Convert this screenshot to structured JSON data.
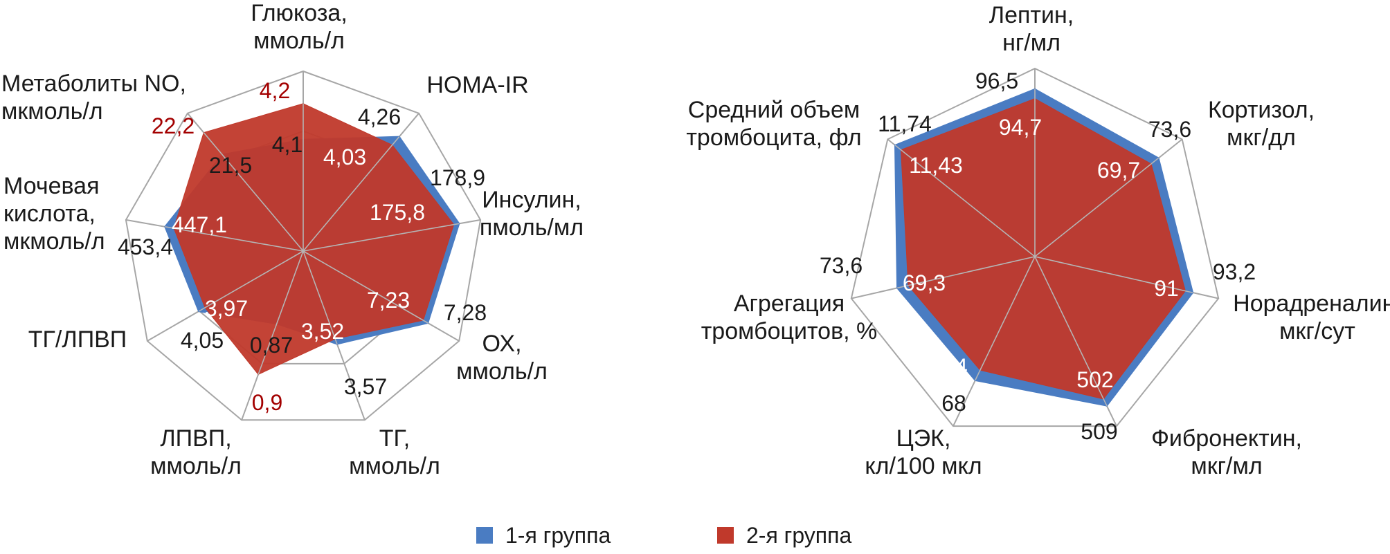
{
  "colors": {
    "group1": "#4a7cc2",
    "group2": "#c0392b",
    "grid": "#a6a6a6",
    "highlight_text": "#a30000"
  },
  "legend": [
    {
      "label": "1-я группа",
      "color": "#4a7cc2"
    },
    {
      "label": "2-я группа",
      "color": "#c0392b"
    }
  ],
  "chart_data": [
    {
      "type": "radar",
      "axes": [
        [
          "Глюкоза,",
          "ммоль/л"
        ],
        [
          "HOMA-IR"
        ],
        [
          "Инсулин,",
          "пмоль/мл"
        ],
        [
          "ОХ,",
          "ммоль/л"
        ],
        [
          "ТГ,",
          "ммоль/л"
        ],
        [
          "ЛПВП,",
          "ммоль/л"
        ],
        [
          "ТГ/ЛПВП"
        ],
        [
          "Мочевая",
          "кислота,",
          "мкмоль/л"
        ],
        [
          "Метаболиты NO,",
          "мкмоль/л"
        ]
      ],
      "series": [
        {
          "name": "1-я группа",
          "values": [
            4.1,
            4.26,
            178.9,
            7.28,
            3.57,
            0.87,
            4.05,
            453.4,
            21.5
          ],
          "labels": [
            "4,1",
            "4,26",
            "178,9",
            "7,28",
            "3,57",
            "0,87",
            "4,05",
            "453,4",
            "21,5"
          ]
        },
        {
          "name": "2-я группа",
          "values": [
            4.2,
            4.03,
            175.8,
            7.23,
            3.52,
            0.9,
            3.97,
            447.1,
            22.2
          ],
          "labels": [
            "4,2",
            "4,03",
            "175,8",
            "7,23",
            "3,52",
            "0,9",
            "3,97",
            "447,1",
            "22,2"
          ]
        }
      ]
    },
    {
      "type": "radar",
      "axes": [
        [
          "Лептин,",
          "нг/мл"
        ],
        [
          "Кортизол,",
          "мкг/дл"
        ],
        [
          "Норадреналин,",
          "мкг/сут"
        ],
        [
          "Фибронектин,",
          "мкг/мл"
        ],
        [
          "ЦЭК,",
          "кл/100 мкл"
        ],
        [
          "Агрегация",
          "тромбоцитов, %"
        ],
        [
          "Средний объем",
          "тромбоцита, фл"
        ]
      ],
      "series": [
        {
          "name": "1-я группа",
          "values": [
            96.5,
            73.6,
            93.2,
            509,
            68,
            73.6,
            11.74
          ],
          "labels": [
            "96,5",
            "73,6",
            "93,2",
            "509",
            "68",
            "73,6",
            "11,74"
          ]
        },
        {
          "name": "2-я группа",
          "values": [
            94.7,
            69.7,
            91,
            502,
            64,
            69.3,
            11.43
          ],
          "labels": [
            "94,7",
            "69,7",
            "91",
            "502",
            "64",
            "69,3",
            "11,43"
          ]
        }
      ]
    }
  ]
}
